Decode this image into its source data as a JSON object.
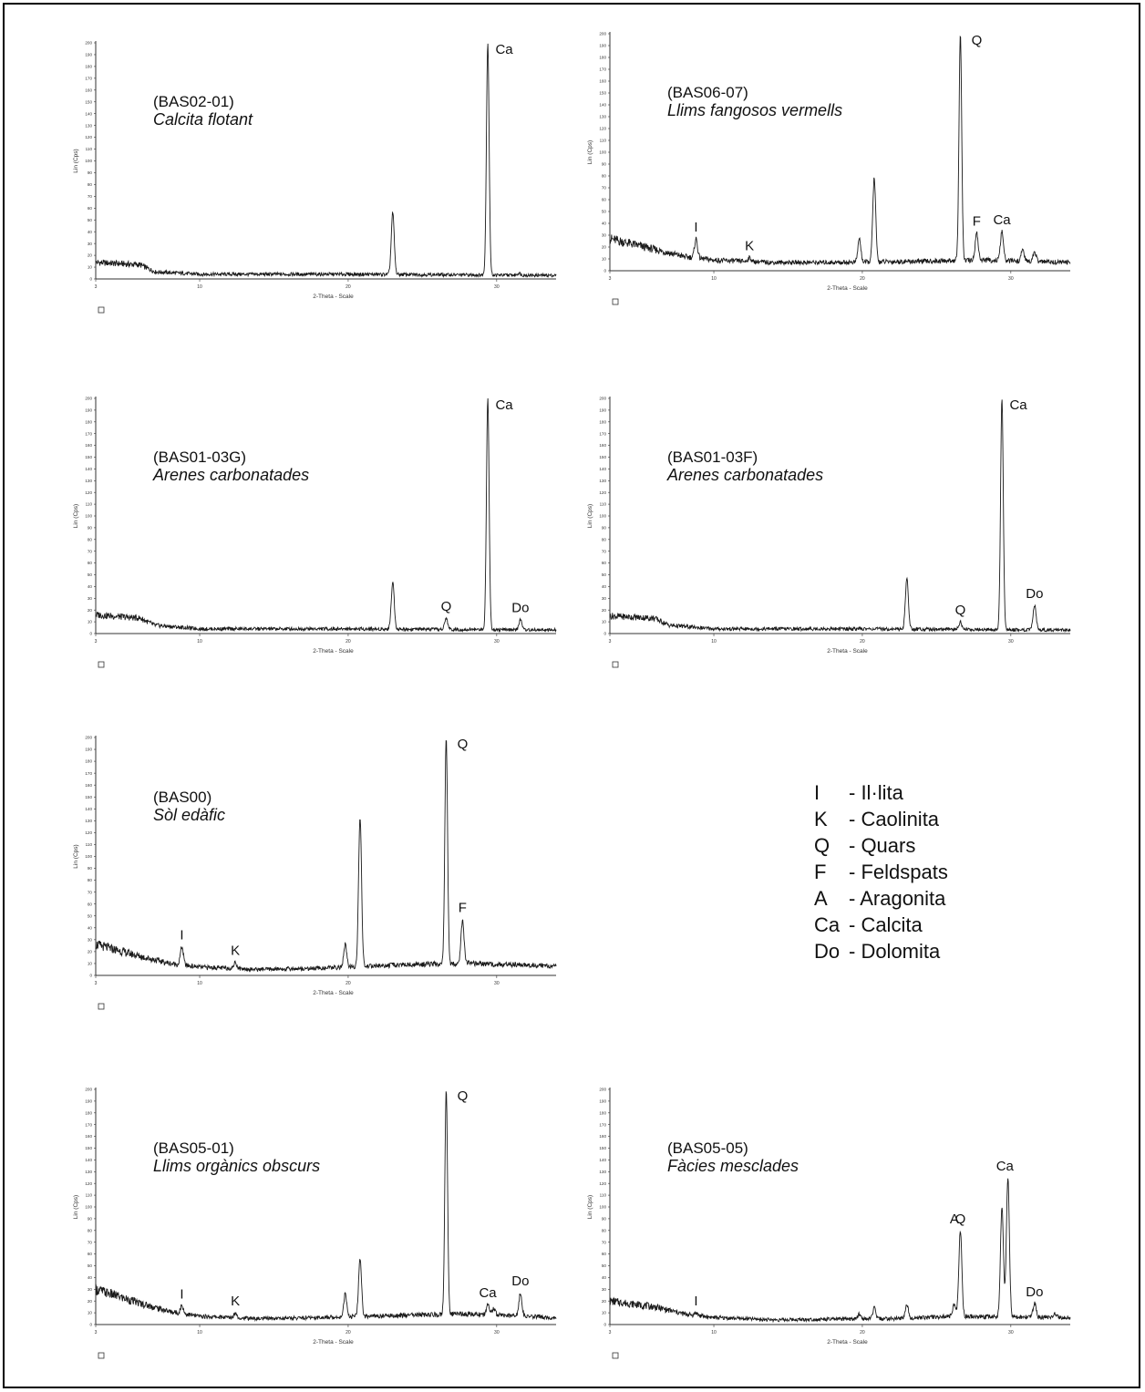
{
  "figure": {
    "legend": {
      "items": [
        {
          "code": "I",
          "text": "- Il·lita"
        },
        {
          "code": "K",
          "text": "- Caolinita"
        },
        {
          "code": "Q",
          "text": "- Quars"
        },
        {
          "code": "F",
          "text": "- Feldspats"
        },
        {
          "code": "A",
          "text": "- Aragonita"
        },
        {
          "code": "Ca",
          "text": "- Calcita"
        },
        {
          "code": "Do",
          "text": "- Dolomita"
        }
      ]
    }
  },
  "chart_data": [
    {
      "id": "BAS02-01",
      "type": "line",
      "sample_code": "(BAS02-01)",
      "sample_desc": "Calcita flotant",
      "xlabel": "2-Theta - Scale",
      "ylabel": "Lin (Cps)",
      "xlim": [
        3,
        34
      ],
      "ylim": [
        0,
        200
      ],
      "x_ticks": [
        "3",
        "10",
        "20",
        "30"
      ],
      "y_ticks": [
        "0",
        "10",
        "20",
        "30",
        "40",
        "50",
        "60",
        "70",
        "80",
        "90",
        "100",
        "110",
        "120",
        "130",
        "140",
        "150",
        "160",
        "170",
        "180",
        "190",
        "200"
      ],
      "baseline": [
        [
          3,
          14
        ],
        [
          6,
          12
        ],
        [
          7,
          6
        ],
        [
          10,
          4
        ],
        [
          20,
          4
        ],
        [
          34,
          3
        ]
      ],
      "peaks": [
        {
          "x": 23.0,
          "y": 56
        },
        {
          "x": 29.4,
          "y": 200
        },
        {
          "x": 31.5,
          "y": 5
        }
      ],
      "annotations": [
        {
          "label": "Ca",
          "x": 29.4
        }
      ]
    },
    {
      "id": "BAS06-07",
      "type": "line",
      "sample_code": "(BAS06-07)",
      "sample_desc": "Llims fangosos vermells",
      "xlabel": "2-Theta - Scale",
      "ylabel": "Lin (Cps)",
      "xlim": [
        3,
        34
      ],
      "ylim": [
        0,
        200
      ],
      "x_ticks": [
        "3",
        "10",
        "20",
        "30"
      ],
      "y_ticks": [
        "0",
        "10",
        "20",
        "30",
        "40",
        "50",
        "60",
        "70",
        "80",
        "90",
        "100",
        "110",
        "120",
        "130",
        "140",
        "150",
        "160",
        "170",
        "180",
        "190",
        "200"
      ],
      "baseline": [
        [
          3,
          27
        ],
        [
          6,
          18
        ],
        [
          8,
          12
        ],
        [
          10,
          9
        ],
        [
          14,
          7
        ],
        [
          18,
          7
        ],
        [
          24,
          8
        ],
        [
          28,
          9
        ],
        [
          34,
          7
        ]
      ],
      "peaks": [
        {
          "x": 8.8,
          "y": 27
        },
        {
          "x": 12.4,
          "y": 11
        },
        {
          "x": 19.8,
          "y": 27
        },
        {
          "x": 20.8,
          "y": 78
        },
        {
          "x": 26.6,
          "y": 200
        },
        {
          "x": 27.7,
          "y": 32
        },
        {
          "x": 29.4,
          "y": 33
        },
        {
          "x": 30.8,
          "y": 18
        },
        {
          "x": 31.6,
          "y": 16
        }
      ],
      "annotations": [
        {
          "label": "I",
          "x": 8.8
        },
        {
          "label": "K",
          "x": 12.4
        },
        {
          "label": "Q",
          "x": 26.6
        },
        {
          "label": "F",
          "x": 27.7
        },
        {
          "label": "Ca",
          "x": 29.4
        }
      ]
    },
    {
      "id": "BAS01-03G",
      "type": "line",
      "sample_code": "(BAS01-03G)",
      "sample_desc": "Arenes carbonatades",
      "xlabel": "2-Theta - Scale",
      "ylabel": "Lin (Cps)",
      "xlim": [
        3,
        34
      ],
      "ylim": [
        0,
        200
      ],
      "x_ticks": [
        "3",
        "10",
        "20",
        "30"
      ],
      "y_ticks": [
        "0",
        "10",
        "20",
        "30",
        "40",
        "50",
        "60",
        "70",
        "80",
        "90",
        "100",
        "110",
        "120",
        "130",
        "140",
        "150",
        "160",
        "170",
        "180",
        "190",
        "200"
      ],
      "baseline": [
        [
          3,
          16
        ],
        [
          6,
          13
        ],
        [
          7,
          7
        ],
        [
          10,
          4
        ],
        [
          20,
          4
        ],
        [
          34,
          3
        ]
      ],
      "peaks": [
        {
          "x": 23.0,
          "y": 44
        },
        {
          "x": 26.6,
          "y": 13
        },
        {
          "x": 29.4,
          "y": 200
        },
        {
          "x": 31.6,
          "y": 12
        }
      ],
      "annotations": [
        {
          "label": "Q",
          "x": 26.6
        },
        {
          "label": "Ca",
          "x": 29.4
        },
        {
          "label": "Do",
          "x": 31.6
        }
      ]
    },
    {
      "id": "BAS01-03F",
      "type": "line",
      "sample_code": "(BAS01-03F)",
      "sample_desc": "Arenes carbonatades",
      "xlabel": "2-Theta - Scale",
      "ylabel": "Lin (Cps)",
      "xlim": [
        3,
        34
      ],
      "ylim": [
        0,
        200
      ],
      "x_ticks": [
        "3",
        "10",
        "20",
        "30"
      ],
      "y_ticks": [
        "0",
        "10",
        "20",
        "30",
        "40",
        "50",
        "60",
        "70",
        "80",
        "90",
        "100",
        "110",
        "120",
        "130",
        "140",
        "150",
        "160",
        "170",
        "180",
        "190",
        "200"
      ],
      "baseline": [
        [
          3,
          15
        ],
        [
          6,
          13
        ],
        [
          7,
          7
        ],
        [
          10,
          4
        ],
        [
          20,
          4
        ],
        [
          34,
          3
        ]
      ],
      "peaks": [
        {
          "x": 23.0,
          "y": 47
        },
        {
          "x": 26.6,
          "y": 10
        },
        {
          "x": 29.4,
          "y": 200
        },
        {
          "x": 31.6,
          "y": 24
        }
      ],
      "annotations": [
        {
          "label": "Q",
          "x": 26.6
        },
        {
          "label": "Ca",
          "x": 29.4
        },
        {
          "label": "Do",
          "x": 31.6
        }
      ]
    },
    {
      "id": "BAS00",
      "type": "line",
      "sample_code": "(BAS00)",
      "sample_desc": "Sòl edàfic",
      "xlabel": "2-Theta - Scale",
      "ylabel": "Lin (Cps)",
      "xlim": [
        3,
        34
      ],
      "ylim": [
        0,
        200
      ],
      "x_ticks": [
        "3",
        "10",
        "20",
        "30"
      ],
      "y_ticks": [
        "0",
        "10",
        "20",
        "30",
        "40",
        "50",
        "60",
        "70",
        "80",
        "90",
        "100",
        "110",
        "120",
        "130",
        "140",
        "150",
        "160",
        "170",
        "180",
        "190",
        "200"
      ],
      "baseline": [
        [
          3,
          26
        ],
        [
          6,
          16
        ],
        [
          8,
          10
        ],
        [
          10,
          7
        ],
        [
          14,
          5
        ],
        [
          18,
          6
        ],
        [
          24,
          9
        ],
        [
          28,
          10
        ],
        [
          34,
          8
        ]
      ],
      "peaks": [
        {
          "x": 8.8,
          "y": 24
        },
        {
          "x": 12.4,
          "y": 11
        },
        {
          "x": 19.8,
          "y": 26
        },
        {
          "x": 20.8,
          "y": 133
        },
        {
          "x": 26.6,
          "y": 200
        },
        {
          "x": 27.7,
          "y": 47
        }
      ],
      "annotations": [
        {
          "label": "I",
          "x": 8.8
        },
        {
          "label": "K",
          "x": 12.4
        },
        {
          "label": "Q",
          "x": 26.6
        },
        {
          "label": "F",
          "x": 27.7
        }
      ]
    },
    {
      "id": "BAS05-01",
      "type": "line",
      "sample_code": "(BAS05-01)",
      "sample_desc": "Llims orgànics obscurs",
      "xlabel": "2-Theta - Scale",
      "ylabel": "Lin (Cps)",
      "xlim": [
        3,
        34
      ],
      "ylim": [
        0,
        200
      ],
      "x_ticks": [
        "3",
        "10",
        "20",
        "30"
      ],
      "y_ticks": [
        "0",
        "10",
        "20",
        "30",
        "40",
        "50",
        "60",
        "70",
        "80",
        "90",
        "100",
        "110",
        "120",
        "130",
        "140",
        "150",
        "160",
        "170",
        "180",
        "190",
        "200"
      ],
      "baseline": [
        [
          3,
          30
        ],
        [
          6,
          18
        ],
        [
          8,
          11
        ],
        [
          10,
          7
        ],
        [
          14,
          5
        ],
        [
          18,
          6
        ],
        [
          24,
          8
        ],
        [
          28,
          9
        ],
        [
          34,
          6
        ]
      ],
      "peaks": [
        {
          "x": 8.8,
          "y": 16
        },
        {
          "x": 12.4,
          "y": 10
        },
        {
          "x": 19.8,
          "y": 26
        },
        {
          "x": 20.8,
          "y": 55
        },
        {
          "x": 26.6,
          "y": 200
        },
        {
          "x": 29.4,
          "y": 17
        },
        {
          "x": 29.8,
          "y": 14
        },
        {
          "x": 31.6,
          "y": 27
        }
      ],
      "annotations": [
        {
          "label": "I",
          "x": 8.8
        },
        {
          "label": "K",
          "x": 12.4
        },
        {
          "label": "Q",
          "x": 26.6
        },
        {
          "label": "Ca",
          "x": 29.4
        },
        {
          "label": "Do",
          "x": 31.6
        }
      ]
    },
    {
      "id": "BAS05-05",
      "type": "line",
      "sample_code": "(BAS05-05)",
      "sample_desc": "Fàcies mesclades",
      "xlabel": "2-Theta - Scale",
      "ylabel": "Lin (Cps)",
      "xlim": [
        3,
        34
      ],
      "ylim": [
        0,
        200
      ],
      "x_ticks": [
        "3",
        "10",
        "20",
        "30"
      ],
      "y_ticks": [
        "0",
        "10",
        "20",
        "30",
        "40",
        "50",
        "60",
        "70",
        "80",
        "90",
        "100",
        "110",
        "120",
        "130",
        "140",
        "150",
        "160",
        "170",
        "180",
        "190",
        "200"
      ],
      "baseline": [
        [
          3,
          20
        ],
        [
          6,
          15
        ],
        [
          8,
          9
        ],
        [
          10,
          6
        ],
        [
          14,
          4
        ],
        [
          22,
          5
        ],
        [
          26,
          7
        ],
        [
          34,
          6
        ]
      ],
      "peaks": [
        {
          "x": 8.8,
          "y": 10
        },
        {
          "x": 19.8,
          "y": 9
        },
        {
          "x": 20.8,
          "y": 14
        },
        {
          "x": 23.0,
          "y": 17
        },
        {
          "x": 26.2,
          "y": 18
        },
        {
          "x": 26.6,
          "y": 80
        },
        {
          "x": 29.4,
          "y": 100
        },
        {
          "x": 29.8,
          "y": 125
        },
        {
          "x": 31.6,
          "y": 18
        },
        {
          "x": 33.0,
          "y": 9
        }
      ],
      "annotations": [
        {
          "label": "I",
          "x": 8.8
        },
        {
          "label": "A",
          "x": 26.2
        },
        {
          "label": "Q",
          "x": 26.6
        },
        {
          "label": "Ca",
          "x": 29.6
        },
        {
          "label": "Do",
          "x": 31.6
        }
      ]
    }
  ]
}
